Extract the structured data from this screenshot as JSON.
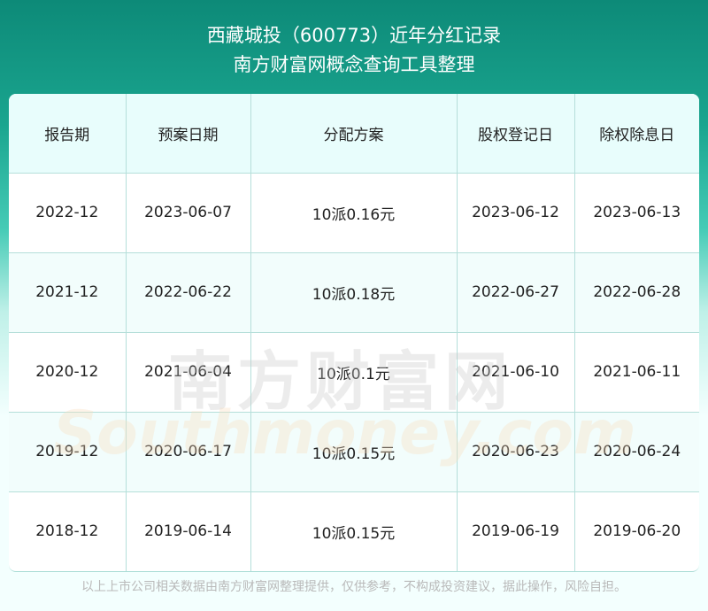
{
  "header": {
    "title": "西藏城投（600773）近年分红记录",
    "subtitle": "南方财富网概念查询工具整理"
  },
  "table": {
    "columns": [
      "报告期",
      "预案日期",
      "分配方案",
      "股权登记日",
      "除权除息日"
    ],
    "rows": [
      [
        "2022-12",
        "2023-06-07",
        "10派0.16元",
        "2023-06-12",
        "2023-06-13"
      ],
      [
        "2021-12",
        "2022-06-22",
        "10派0.18元",
        "2022-06-27",
        "2022-06-28"
      ],
      [
        "2020-12",
        "2021-06-04",
        "10派0.1元",
        "2021-06-10",
        "2021-06-11"
      ],
      [
        "2019-12",
        "2020-06-17",
        "10派0.15元",
        "2020-06-23",
        "2020-06-24"
      ],
      [
        "2018-12",
        "2019-06-14",
        "10派0.15元",
        "2019-06-19",
        "2019-06-20"
      ]
    ]
  },
  "watermark": {
    "cn": "南方财富网",
    "en": "Southmoney.com"
  },
  "footer": "以上上市公司相关数据由南方财富网整理提供，仅供参考，不构成投资建议，据此操作，风险自担。"
}
